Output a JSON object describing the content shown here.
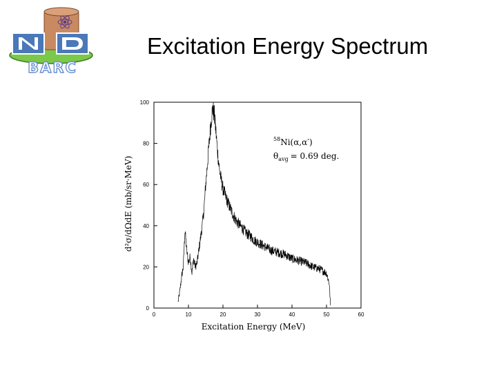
{
  "slide": {
    "title": "Excitation Energy Spectrum",
    "logo": {
      "text_nd": "ND",
      "text_barc": "BARC",
      "colors": {
        "drum": "#c98a62",
        "tile": "#4a78b8",
        "base": "#7bc84a",
        "barc_outline": "#6a8fd0"
      }
    }
  },
  "chart_data": {
    "type": "line",
    "title": "",
    "xlabel": "Excitation Energy (MeV)",
    "ylabel": "d²σ/dΩdE (mb/sr·MeV)",
    "xlim": [
      0,
      60
    ],
    "ylim": [
      0,
      100
    ],
    "xticks": [
      "0",
      "10",
      "20",
      "30",
      "40",
      "50",
      "60"
    ],
    "yticks": [
      "0",
      "20",
      "40",
      "60",
      "80",
      "100"
    ],
    "grid": false,
    "annotation": {
      "reaction_super": "58",
      "reaction": "Ni(α,α′)",
      "angle_symbol": "θ",
      "angle_sub": "avg",
      "angle_value": "= 0.69 deg."
    },
    "series": [
      {
        "x": [
          7.0,
          7.5,
          8.0,
          8.5,
          9.0,
          9.5,
          10.0,
          10.5,
          11.0,
          11.5,
          12.0,
          12.5,
          13.0,
          13.5,
          14.0,
          14.5,
          15.0,
          15.5,
          16.0,
          16.5,
          17.0,
          17.5,
          18.0,
          18.5,
          19.0,
          19.5,
          20.0,
          21.0,
          22.0,
          23.0,
          24.0,
          25.0,
          26.0,
          27.0,
          28.0,
          29.0,
          30.0,
          32.0,
          34.0,
          36.0,
          38.0,
          40.0,
          42.0,
          44.0,
          46.0,
          48.0,
          50.0,
          50.8,
          51.2
        ],
        "y": [
          3,
          8,
          15,
          20,
          38,
          28,
          22,
          25,
          17,
          24,
          20,
          22,
          28,
          34,
          40,
          48,
          60,
          70,
          80,
          90,
          97,
          94,
          85,
          75,
          67,
          62,
          58,
          53,
          49,
          45,
          42,
          40,
          38,
          36,
          35,
          33,
          32,
          30,
          28,
          27,
          26,
          24,
          23,
          22,
          20,
          19,
          17,
          12,
          0
        ]
      }
    ],
    "noise_amplitude": 2.2
  }
}
